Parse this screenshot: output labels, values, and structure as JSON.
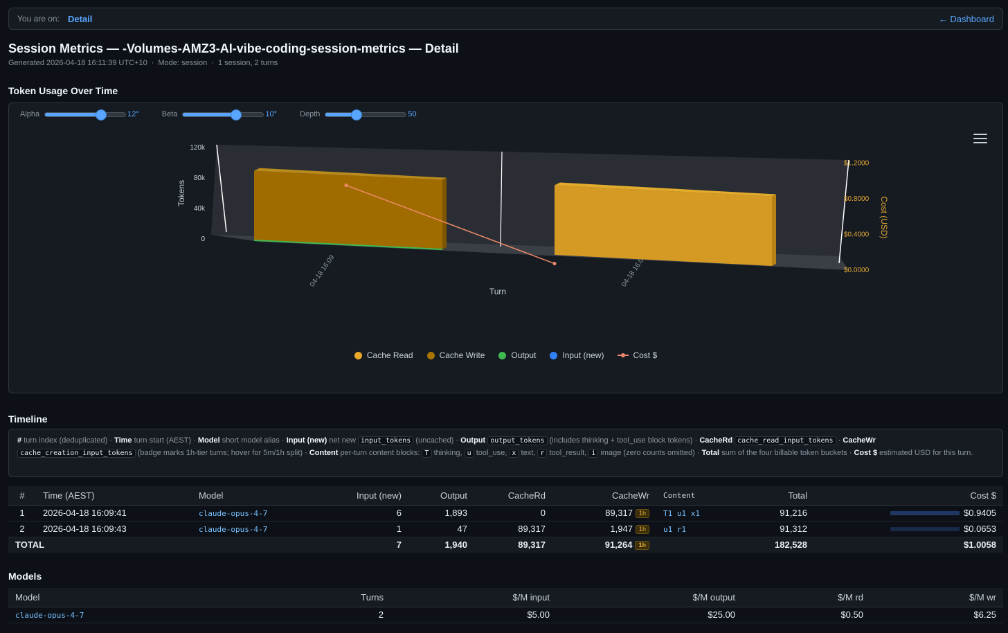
{
  "breadcrumb": {
    "label": "You are on:",
    "current": "Detail",
    "back": "← Dashboard"
  },
  "header": {
    "title": "Session Metrics — -Volumes-AMZ3-AI-vibe-coding-session-metrics — Detail",
    "generated": "Generated 2026-04-18 16:11:39 UTC+10",
    "mode": "Mode: session",
    "counts": "1 session, 2 turns"
  },
  "token_usage": {
    "heading": "Token Usage Over Time",
    "sliders": [
      {
        "name": "Alpha",
        "value": "12°",
        "fraction": 0.7
      },
      {
        "name": "Beta",
        "value": "10°",
        "fraction": 0.66
      },
      {
        "name": "Depth",
        "value": "50",
        "fraction": 0.38
      }
    ],
    "menu_icon": "hamburger-menu-icon"
  },
  "chart_data": {
    "type": "bar",
    "title": "",
    "categories": [
      "04-18 16:09",
      "04-18 16:09"
    ],
    "xlabel": "Turn",
    "ylabel": "Tokens",
    "y2label": "Cost (USD)",
    "ylim": [
      0,
      120000
    ],
    "y2lim": [
      0,
      1.2
    ],
    "yticks": [
      "0",
      "40k",
      "80k",
      "120k"
    ],
    "y2ticks": [
      "$0.0000",
      "$0.4000",
      "$0.8000",
      "$1.2000"
    ],
    "series": [
      {
        "name": "Cache Read",
        "color": "#e8a829",
        "values": [
          0,
          89317
        ]
      },
      {
        "name": "Cache Write",
        "color": "#a87300",
        "values": [
          89317,
          1947
        ]
      },
      {
        "name": "Output",
        "color": "#3fb950",
        "values": [
          1893,
          47
        ]
      },
      {
        "name": "Input (new)",
        "color": "#2f81f7",
        "values": [
          6,
          1
        ]
      },
      {
        "name": "Cost $",
        "color": "#f08a6a",
        "type": "line",
        "values": [
          0.9405,
          0.0653
        ]
      }
    ],
    "legend": "bottom"
  },
  "timeline": {
    "heading": "Timeline",
    "note": {
      "hash": "#",
      "hash_desc": "turn index (deduplicated) ·",
      "time": "Time",
      "time_desc": "turn start (AEST) ·",
      "model": "Model",
      "model_desc": "short model alias ·",
      "input": "Input (new)",
      "input_desc": "net new",
      "input_code": "input_tokens",
      "input_tail": "(uncached) ·",
      "output": "Output",
      "output_code": "output_tokens",
      "output_desc": "(includes thinking + tool_use block tokens) ·",
      "cacherd": "CacheRd",
      "cacherd_code": "cache_read_input_tokens",
      "cacherd_tail": "·",
      "cachewr": "CacheWr",
      "cachewr_code": "cache_creation_input_tokens",
      "cachewr_desc": "(badge marks 1h-tier turns; hover for 5m/1h split) ·",
      "content": "Content",
      "content_desc": "per-turn content blocks:",
      "t_code": "T",
      "t_desc": "thinking,",
      "u_code": "u",
      "u_desc": "tool_use,",
      "x_code": "x",
      "x_desc": "text,",
      "r_code": "r",
      "r_desc": "tool_result,",
      "i_code": "i",
      "i_desc": "image (zero counts omitted) ·",
      "total": "Total",
      "total_desc": "sum of the four billable token buckets ·",
      "cost": "Cost $",
      "cost_desc": "estimated USD for this turn."
    },
    "columns": [
      "#",
      "Time (AEST)",
      "Model",
      "Input (new)",
      "Output",
      "CacheRd",
      "CacheWr",
      "Content",
      "Total",
      "Cost $"
    ],
    "rows": [
      {
        "idx": "1",
        "time": "2026-04-18 16:09:41",
        "model": "claude-opus-4-7",
        "input": "6",
        "output": "1,893",
        "cacherd": "0",
        "cachewr": "89,317",
        "badge": "1h",
        "content": "T1 u1 x1",
        "total": "91,216",
        "cost": "$0.9405",
        "cost_fraction": 0.93
      },
      {
        "idx": "2",
        "time": "2026-04-18 16:09:43",
        "model": "claude-opus-4-7",
        "input": "1",
        "output": "47",
        "cacherd": "89,317",
        "cachewr": "1,947",
        "badge": "1h",
        "content": "u1 r1",
        "total": "91,312",
        "cost": "$0.0653",
        "cost_fraction": 0.065
      }
    ],
    "total": {
      "label": "TOTAL",
      "input": "7",
      "output": "1,940",
      "cacherd": "89,317",
      "cachewr": "91,264",
      "badge": "1h",
      "total": "182,528",
      "cost": "$1.0058"
    }
  },
  "models": {
    "heading": "Models",
    "columns": [
      "Model",
      "Turns",
      "$/M input",
      "$/M output",
      "$/M rd",
      "$/M wr"
    ],
    "rows": [
      {
        "model": "claude-opus-4-7",
        "turns": "2",
        "input": "$5.00",
        "output": "$25.00",
        "rd": "$0.50",
        "wr": "$6.25"
      }
    ]
  }
}
